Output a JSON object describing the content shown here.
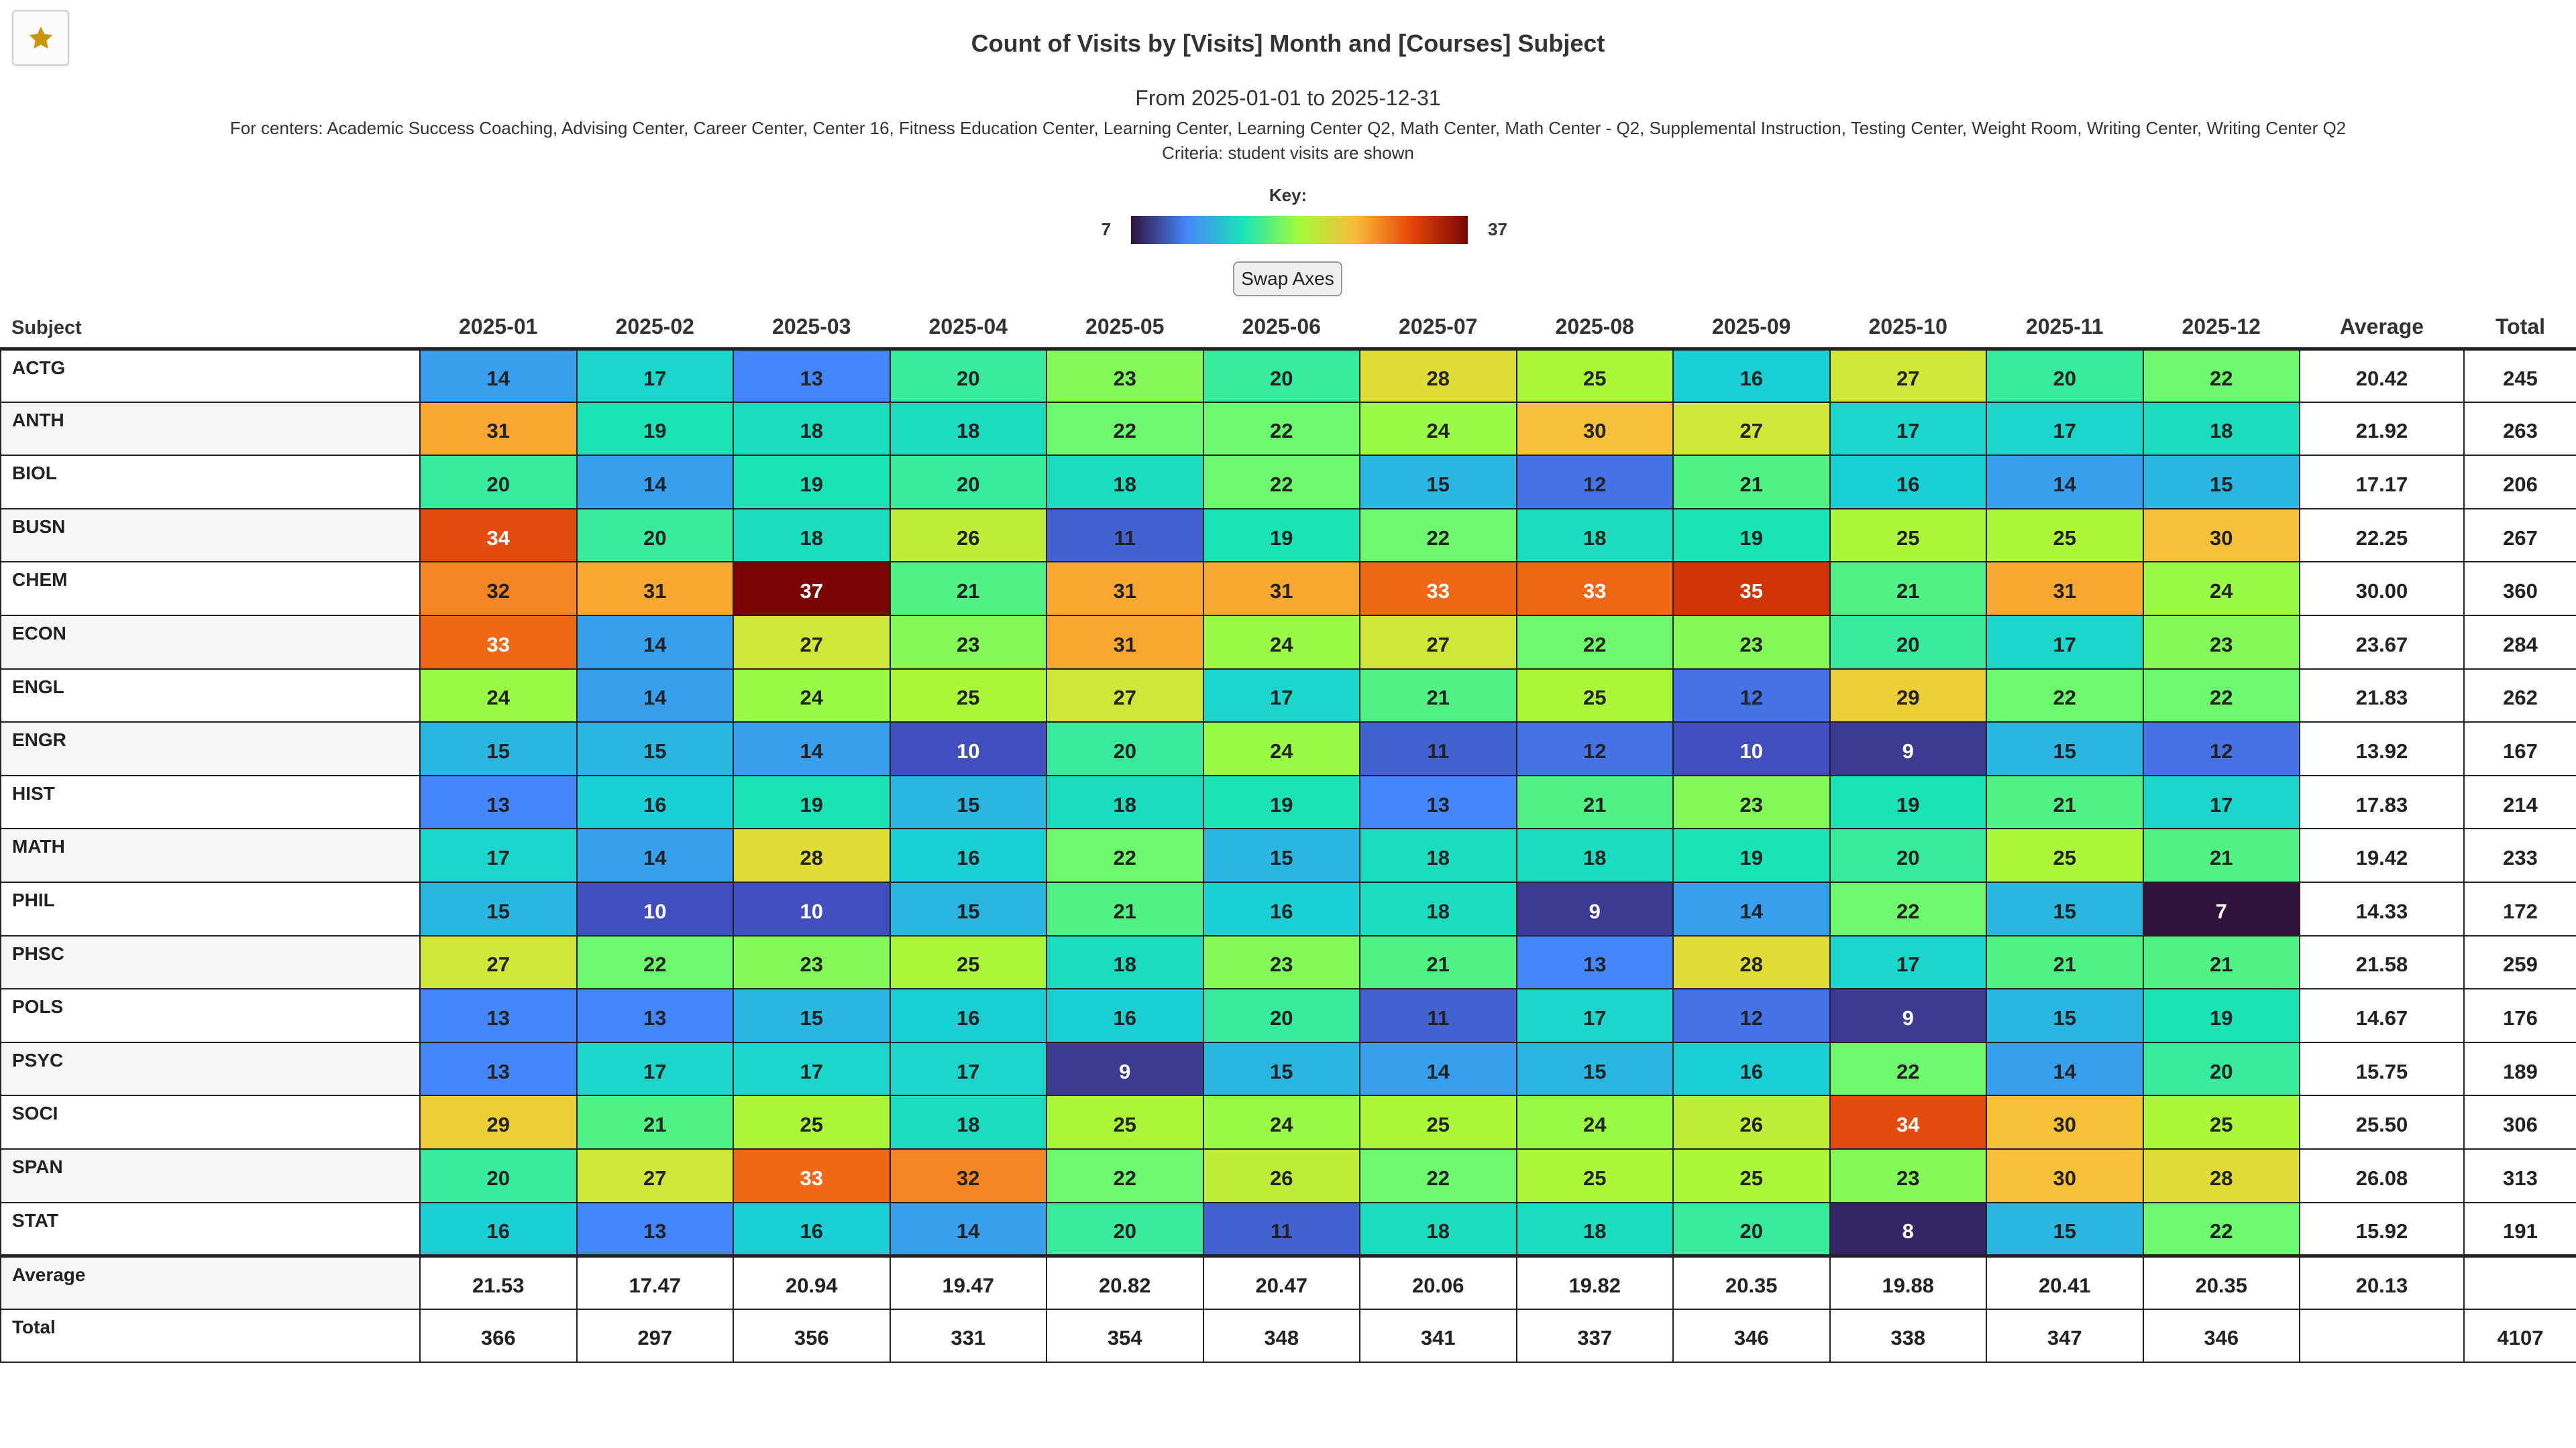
{
  "header": {
    "title": "Count of Visits by [Visits] Month and [Courses] Subject",
    "date_range": "From 2025-01-01 to 2025-12-31",
    "centers": "For centers: Academic Success Coaching, Advising Center, Career Center, Center 16, Fitness Education Center, Learning Center, Learning Center Q2, Math Center, Math Center - Q2, Supplemental Instruction, Testing Center, Weight Room, Writing Center, Writing Center Q2",
    "criteria": "Criteria: student visits are shown"
  },
  "key": {
    "label": "Key:",
    "min": "7",
    "max": "37",
    "min_value": 7,
    "max_value": 37
  },
  "swap_button": "Swap Axes",
  "favorite_icon": "star-icon",
  "colors": {
    "star": "#c9960e",
    "border": "#222222"
  },
  "table": {
    "subject_header": "Subject",
    "average_header": "Average",
    "total_header": "Total",
    "months": [
      "2025-01",
      "2025-02",
      "2025-03",
      "2025-04",
      "2025-05",
      "2025-06",
      "2025-07",
      "2025-08",
      "2025-09",
      "2025-10",
      "2025-11",
      "2025-12"
    ],
    "rows": [
      {
        "subject": "ACTG",
        "values": [
          14,
          17,
          13,
          20,
          23,
          20,
          28,
          25,
          16,
          27,
          20,
          22
        ],
        "average": "20.42",
        "total": "245"
      },
      {
        "subject": "ANTH",
        "values": [
          31,
          19,
          18,
          18,
          22,
          22,
          24,
          30,
          27,
          17,
          17,
          18
        ],
        "average": "21.92",
        "total": "263"
      },
      {
        "subject": "BIOL",
        "values": [
          20,
          14,
          19,
          20,
          18,
          22,
          15,
          12,
          21,
          16,
          14,
          15
        ],
        "average": "17.17",
        "total": "206"
      },
      {
        "subject": "BUSN",
        "values": [
          34,
          20,
          18,
          26,
          11,
          19,
          22,
          18,
          19,
          25,
          25,
          30
        ],
        "average": "22.25",
        "total": "267"
      },
      {
        "subject": "CHEM",
        "values": [
          32,
          31,
          37,
          21,
          31,
          31,
          33,
          33,
          35,
          21,
          31,
          24
        ],
        "average": "30.00",
        "total": "360"
      },
      {
        "subject": "ECON",
        "values": [
          33,
          14,
          27,
          23,
          31,
          24,
          27,
          22,
          23,
          20,
          17,
          23
        ],
        "average": "23.67",
        "total": "284"
      },
      {
        "subject": "ENGL",
        "values": [
          24,
          14,
          24,
          25,
          27,
          17,
          21,
          25,
          12,
          29,
          22,
          22
        ],
        "average": "21.83",
        "total": "262"
      },
      {
        "subject": "ENGR",
        "values": [
          15,
          15,
          14,
          10,
          20,
          24,
          11,
          12,
          10,
          9,
          15,
          12
        ],
        "average": "13.92",
        "total": "167"
      },
      {
        "subject": "HIST",
        "values": [
          13,
          16,
          19,
          15,
          18,
          19,
          13,
          21,
          23,
          19,
          21,
          17
        ],
        "average": "17.83",
        "total": "214"
      },
      {
        "subject": "MATH",
        "values": [
          17,
          14,
          28,
          16,
          22,
          15,
          18,
          18,
          19,
          20,
          25,
          21
        ],
        "average": "19.42",
        "total": "233"
      },
      {
        "subject": "PHIL",
        "values": [
          15,
          10,
          10,
          15,
          21,
          16,
          18,
          9,
          14,
          22,
          15,
          7
        ],
        "average": "14.33",
        "total": "172"
      },
      {
        "subject": "PHSC",
        "values": [
          27,
          22,
          23,
          25,
          18,
          23,
          21,
          13,
          28,
          17,
          21,
          21
        ],
        "average": "21.58",
        "total": "259"
      },
      {
        "subject": "POLS",
        "values": [
          13,
          13,
          15,
          16,
          16,
          20,
          11,
          17,
          12,
          9,
          15,
          19
        ],
        "average": "14.67",
        "total": "176"
      },
      {
        "subject": "PSYC",
        "values": [
          13,
          17,
          17,
          17,
          9,
          15,
          14,
          15,
          16,
          22,
          14,
          20
        ],
        "average": "15.75",
        "total": "189"
      },
      {
        "subject": "SOCI",
        "values": [
          29,
          21,
          25,
          18,
          25,
          24,
          25,
          24,
          26,
          34,
          30,
          25
        ],
        "average": "25.50",
        "total": "306"
      },
      {
        "subject": "SPAN",
        "values": [
          20,
          27,
          33,
          32,
          22,
          26,
          22,
          25,
          25,
          23,
          30,
          28
        ],
        "average": "26.08",
        "total": "313"
      },
      {
        "subject": "STAT",
        "values": [
          16,
          13,
          16,
          14,
          20,
          11,
          18,
          18,
          20,
          8,
          15,
          22
        ],
        "average": "15.92",
        "total": "191"
      }
    ],
    "average_row": {
      "label": "Average",
      "values": [
        "21.53",
        "17.47",
        "20.94",
        "19.47",
        "20.82",
        "20.47",
        "20.06",
        "19.82",
        "20.35",
        "19.88",
        "20.41",
        "20.35"
      ],
      "average": "20.13",
      "total": ""
    },
    "total_row": {
      "label": "Total",
      "values": [
        "366",
        "297",
        "356",
        "331",
        "354",
        "348",
        "341",
        "337",
        "346",
        "338",
        "347",
        "346"
      ],
      "average": "",
      "total": "4107"
    }
  }
}
